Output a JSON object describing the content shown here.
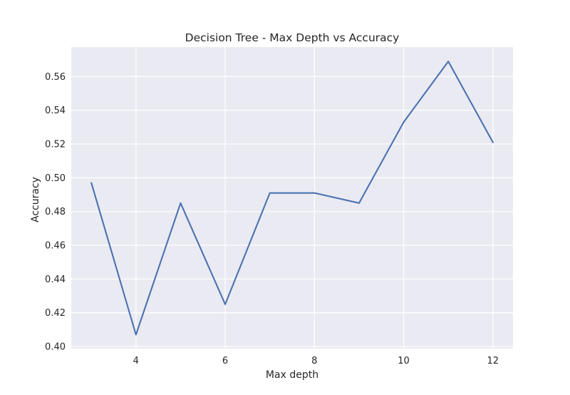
{
  "chart_data": {
    "type": "line",
    "title": "Decision Tree - Max Depth vs Accuracy",
    "xlabel": "Max depth",
    "ylabel": "Accuracy",
    "xlim": [
      2.55,
      12.45
    ],
    "ylim": [
      0.3987,
      0.5775
    ],
    "x_ticks": [
      4,
      6,
      8,
      10,
      12
    ],
    "y_ticks": [
      0.4,
      0.42,
      0.44,
      0.46,
      0.48,
      0.5,
      0.52,
      0.54,
      0.56
    ],
    "x_tick_labels": [
      "4",
      "6",
      "8",
      "10",
      "12"
    ],
    "y_tick_labels": [
      "0.40",
      "0.42",
      "0.44",
      "0.46",
      "0.48",
      "0.50",
      "0.52",
      "0.54",
      "0.56"
    ],
    "grid": true,
    "background_color": "#eaeaf2",
    "grid_color": "#ffffff",
    "series": [
      {
        "color": "#4c72b0",
        "x": [
          3,
          4,
          5,
          6,
          7,
          8,
          9,
          10,
          11,
          12
        ],
        "y": [
          0.497,
          0.407,
          0.485,
          0.425,
          0.491,
          0.491,
          0.485,
          0.533,
          0.569,
          0.521
        ]
      }
    ]
  }
}
